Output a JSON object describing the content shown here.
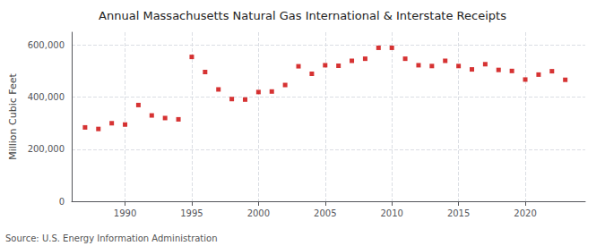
{
  "chart_data": {
    "type": "scatter",
    "title": "Annual Massachusetts Natural Gas International & Interstate Receipts",
    "ylabel": "Million Cubic Feet",
    "annotations": [
      "Source: U.S. Energy Information Administration"
    ],
    "x": [
      1987,
      1988,
      1989,
      1990,
      1991,
      1992,
      1993,
      1994,
      1995,
      1996,
      1997,
      1998,
      1999,
      2000,
      2001,
      2002,
      2003,
      2004,
      2005,
      2006,
      2007,
      2008,
      2009,
      2010,
      2011,
      2012,
      2013,
      2014,
      2015,
      2016,
      2017,
      2018,
      2019,
      2020,
      2021,
      2022,
      2023
    ],
    "values": [
      284000,
      278000,
      300000,
      295000,
      370000,
      330000,
      320000,
      315000,
      555000,
      497000,
      430000,
      393000,
      391000,
      420000,
      422000,
      447000,
      519000,
      490000,
      523000,
      521000,
      540000,
      548000,
      590000,
      590000,
      548000,
      523000,
      520000,
      540000,
      520000,
      507000,
      527000,
      505000,
      501000,
      468000,
      487000,
      500000,
      467000
    ],
    "color": "#cc0000",
    "marker": "square",
    "xlim": [
      1986.0,
      2024.5
    ],
    "xticks": [
      1990,
      1995,
      2000,
      2005,
      2010,
      2015,
      2020
    ],
    "ylim": [
      0,
      650000
    ],
    "yticks": [
      0,
      {
        "value": 200000,
        "label": "200,000"
      },
      {
        "value": 400000,
        "label": "400,000"
      },
      {
        "value": 600000,
        "label": "600,000"
      }
    ],
    "grid": true
  }
}
